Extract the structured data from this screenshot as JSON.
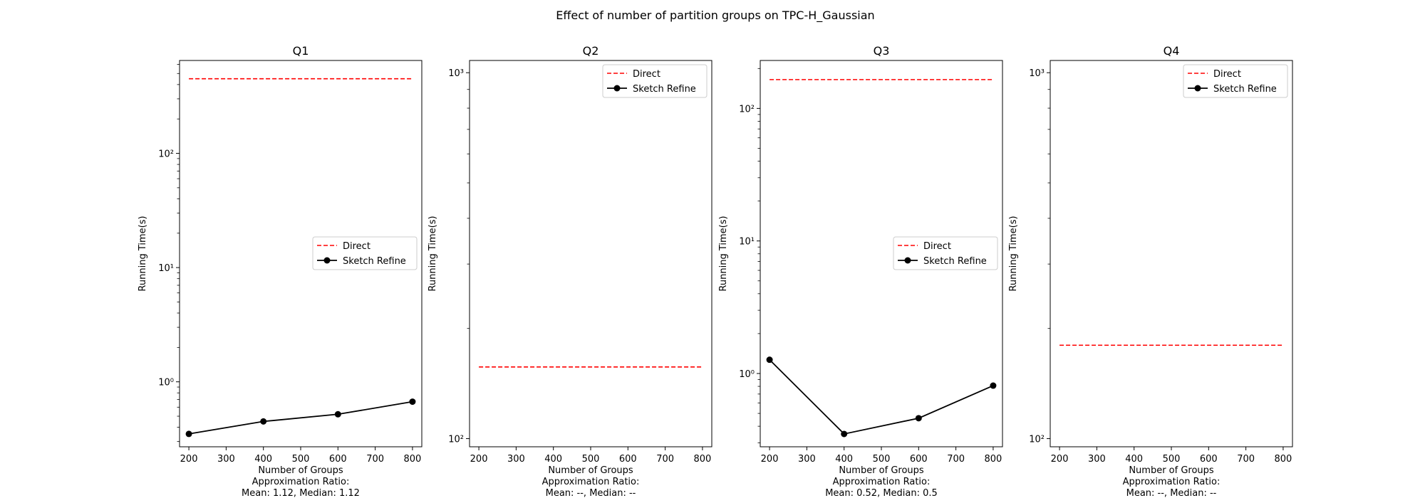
{
  "figure": {
    "suptitle": "Effect of number of partition groups on TPC-H_Gaussian"
  },
  "colors": {
    "direct": "#ff0000",
    "sketch_refine": "#000000"
  },
  "chart_data": [
    {
      "type": "line",
      "title": "Q1",
      "xlabel": "Number of Groups",
      "ylabel": "Running Time(s)",
      "y_scale": "log",
      "xlim": [
        175,
        825
      ],
      "ylim": [
        0.27,
        650
      ],
      "x_ticks": [
        200,
        300,
        400,
        500,
        600,
        700,
        800
      ],
      "y_ticks": [
        1,
        10,
        100
      ],
      "y_tick_labels": [
        "10⁰",
        "10¹",
        "10²"
      ],
      "annotation_lines": [
        "Approximation Ratio:",
        "Mean: 1.12, Median: 1.12"
      ],
      "legend_position": "center-right",
      "series": [
        {
          "name": "Direct",
          "style": "dashed",
          "x": [
            200,
            800
          ],
          "values": [
            450,
            450
          ]
        },
        {
          "name": "Sketch Refine",
          "style": "solid-marker",
          "x": [
            200,
            400,
            600,
            800
          ],
          "values": [
            0.35,
            0.45,
            0.52,
            0.67
          ]
        }
      ]
    },
    {
      "type": "line",
      "title": "Q2",
      "xlabel": "Number of Groups",
      "ylabel": "Running Time(s)",
      "y_scale": "log",
      "xlim": [
        175,
        825
      ],
      "ylim": [
        95,
        1080
      ],
      "x_ticks": [
        200,
        300,
        400,
        500,
        600,
        700,
        800
      ],
      "y_ticks": [
        100,
        1000
      ],
      "y_tick_labels": [
        "10²",
        "10³"
      ],
      "annotation_lines": [
        "Approximation Ratio:",
        "Mean: --, Median: --"
      ],
      "legend_position": "upper-right",
      "series": [
        {
          "name": "Direct",
          "style": "dashed",
          "x": [
            200,
            800
          ],
          "values": [
            157,
            157
          ]
        },
        {
          "name": "Sketch Refine",
          "style": "solid-marker",
          "x": [],
          "values": []
        }
      ]
    },
    {
      "type": "line",
      "title": "Q3",
      "xlabel": "Number of Groups",
      "ylabel": "Running Time(s)",
      "y_scale": "log",
      "xlim": [
        175,
        825
      ],
      "ylim": [
        0.28,
        230
      ],
      "x_ticks": [
        200,
        300,
        400,
        500,
        600,
        700,
        800
      ],
      "y_ticks": [
        1,
        10,
        100
      ],
      "y_tick_labels": [
        "10⁰",
        "10¹",
        "10²"
      ],
      "annotation_lines": [
        "Approximation Ratio:",
        "Mean: 0.52, Median: 0.5"
      ],
      "legend_position": "center-right",
      "series": [
        {
          "name": "Direct",
          "style": "dashed",
          "x": [
            200,
            800
          ],
          "values": [
            165,
            165
          ]
        },
        {
          "name": "Sketch Refine",
          "style": "solid-marker",
          "x": [
            200,
            400,
            600,
            800
          ],
          "values": [
            1.27,
            0.35,
            0.46,
            0.81
          ]
        }
      ]
    },
    {
      "type": "line",
      "title": "Q4",
      "xlabel": "Number of Groups",
      "ylabel": "Running Time(s)",
      "y_scale": "log",
      "xlim": [
        175,
        825
      ],
      "ylim": [
        95,
        1080
      ],
      "x_ticks": [
        200,
        300,
        400,
        500,
        600,
        700,
        800
      ],
      "y_ticks": [
        100,
        1000
      ],
      "y_tick_labels": [
        "10²",
        "10³"
      ],
      "annotation_lines": [
        "Approximation Ratio:",
        "Mean: --, Median: --"
      ],
      "legend_position": "upper-right",
      "series": [
        {
          "name": "Direct",
          "style": "dashed",
          "x": [
            200,
            800
          ],
          "values": [
            180,
            180
          ]
        },
        {
          "name": "Sketch Refine",
          "style": "solid-marker",
          "x": [],
          "values": []
        }
      ]
    }
  ]
}
